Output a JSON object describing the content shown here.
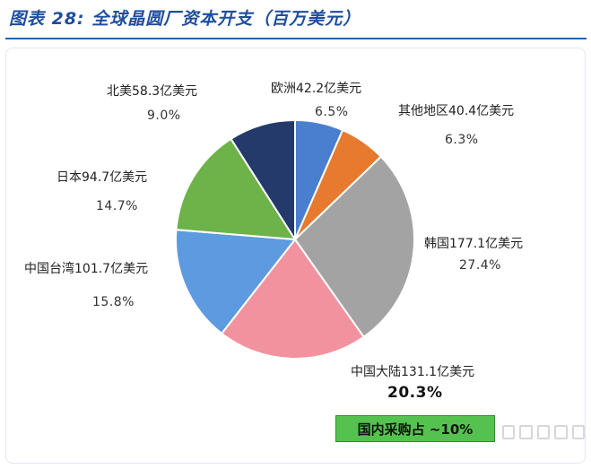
{
  "header": {
    "title": "图表 28: 全球晶圆厂资本开支（百万美元）"
  },
  "chart_data": {
    "type": "pie",
    "title": "图表 28: 全球晶圆厂资本开支（百万美元）",
    "slices": [
      {
        "name": "欧洲",
        "label": "欧洲42.2亿美元",
        "value": 42.2,
        "percent": "6.5%",
        "color": "#4a7fcf"
      },
      {
        "name": "其他地区",
        "label": "其他地区40.4亿美元",
        "value": 40.4,
        "percent": "6.3%",
        "color": "#e77a2e"
      },
      {
        "name": "韩国",
        "label": "韩国177.1亿美元",
        "value": 177.1,
        "percent": "27.4%",
        "color": "#a3a3a3"
      },
      {
        "name": "中国大陆",
        "label": "中国大陆131.1亿美元",
        "value": 131.1,
        "percent": "20.3%",
        "color": "#f2929e"
      },
      {
        "name": "中国台湾",
        "label": "中国台湾101.7亿美元",
        "value": 101.7,
        "percent": "15.8%",
        "color": "#5e9ae0"
      },
      {
        "name": "日本",
        "label": "日本94.7亿美元",
        "value": 94.7,
        "percent": "14.7%",
        "color": "#6eb24a"
      },
      {
        "name": "北美",
        "label": "北美58.3亿美元",
        "value": 58.3,
        "percent": "9.0%",
        "color": "#243a6b"
      }
    ],
    "annotation": "国内采购占 ~10%",
    "annotation_color": "#55c24f"
  }
}
